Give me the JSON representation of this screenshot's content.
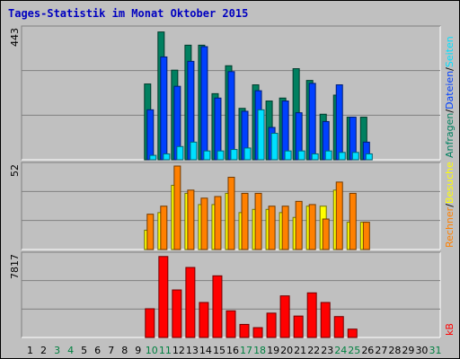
{
  "title": "Tages-Statistik im Monat Oktober 2015",
  "colors": {
    "background": "#c0c0c0",
    "title": "#0000c0",
    "anfragen": "#008060",
    "dateien": "#0040ff",
    "seiten": "#00e0ff",
    "besuche": "#ffff00",
    "rechner": "#ff8000",
    "kb": "#ff0000",
    "weekend_day": "#008040",
    "weekday": "#000000"
  },
  "chart_data": [
    {
      "type": "bar",
      "panel": "hits",
      "ymax_label": "443",
      "ylim": [
        0,
        443
      ],
      "grid": true,
      "categories": [
        "1",
        "2",
        "3",
        "4",
        "5",
        "6",
        "7",
        "8",
        "9",
        "10",
        "11",
        "12",
        "13",
        "14",
        "15",
        "16",
        "17",
        "18",
        "19",
        "20",
        "21",
        "22",
        "23",
        "24",
        "25",
        "26",
        "27",
        "28",
        "29",
        "30",
        "31"
      ],
      "right_labels": [
        "Anfragen",
        "/",
        "Dateien",
        "/",
        "Seiten"
      ],
      "series": [
        {
          "name": "Anfragen",
          "values": [
            0,
            0,
            0,
            0,
            0,
            0,
            0,
            0,
            0,
            258,
            435,
            305,
            390,
            390,
            225,
            320,
            175,
            255,
            200,
            210,
            310,
            270,
            155,
            220,
            145,
            145,
            0,
            0,
            0,
            0,
            0
          ]
        },
        {
          "name": "Dateien",
          "values": [
            0,
            0,
            0,
            0,
            0,
            0,
            0,
            0,
            0,
            170,
            350,
            250,
            335,
            385,
            210,
            300,
            165,
            235,
            110,
            200,
            160,
            260,
            130,
            255,
            145,
            60,
            0,
            0,
            0,
            0,
            0
          ]
        },
        {
          "name": "Seiten",
          "values": [
            0,
            0,
            0,
            0,
            0,
            0,
            0,
            0,
            0,
            15,
            20,
            45,
            60,
            30,
            30,
            35,
            40,
            170,
            90,
            30,
            30,
            20,
            30,
            25,
            25,
            20,
            0,
            0,
            0,
            0,
            0
          ]
        }
      ]
    },
    {
      "type": "bar",
      "panel": "visits",
      "ymax_label": "52",
      "ylim": [
        0,
        52
      ],
      "grid": true,
      "categories": [
        "1",
        "2",
        "3",
        "4",
        "5",
        "6",
        "7",
        "8",
        "9",
        "10",
        "11",
        "12",
        "13",
        "14",
        "15",
        "16",
        "17",
        "18",
        "19",
        "20",
        "21",
        "22",
        "23",
        "24",
        "25",
        "26",
        "27",
        "28",
        "29",
        "30",
        "31"
      ],
      "right_labels": [
        "Rechner",
        "/",
        "Besuche"
      ],
      "series": [
        {
          "name": "Besuche",
          "values": [
            0,
            0,
            0,
            0,
            0,
            0,
            0,
            0,
            0,
            12,
            23,
            40,
            35,
            28,
            28,
            35,
            23,
            25,
            25,
            23,
            20,
            27,
            27,
            37,
            17,
            17,
            0,
            0,
            0,
            0,
            0
          ]
        },
        {
          "name": "Rechner",
          "values": [
            0,
            0,
            0,
            0,
            0,
            0,
            0,
            0,
            0,
            22,
            27,
            52,
            37,
            32,
            33,
            45,
            35,
            35,
            27,
            27,
            30,
            28,
            19,
            42,
            35,
            17,
            0,
            0,
            0,
            0,
            0
          ]
        }
      ]
    },
    {
      "type": "bar",
      "panel": "kb",
      "ymax_label": "7817",
      "ylim": [
        0,
        7817
      ],
      "grid": true,
      "categories": [
        "1",
        "2",
        "3",
        "4",
        "5",
        "6",
        "7",
        "8",
        "9",
        "10",
        "11",
        "12",
        "13",
        "14",
        "15",
        "16",
        "17",
        "18",
        "19",
        "20",
        "21",
        "22",
        "23",
        "24",
        "25",
        "26",
        "27",
        "28",
        "29",
        "30",
        "31"
      ],
      "right_labels": [
        "kB"
      ],
      "series": [
        {
          "name": "kB",
          "values": [
            0,
            0,
            0,
            0,
            0,
            0,
            0,
            0,
            0,
            2750,
            7750,
            4550,
            6700,
            3350,
            5900,
            2550,
            1250,
            940,
            2330,
            3980,
            2050,
            4270,
            3350,
            2000,
            800,
            0,
            0,
            0,
            0,
            0,
            0
          ]
        }
      ]
    }
  ],
  "weekend_days": [
    3,
    4,
    10,
    11,
    17,
    18,
    24,
    25,
    31
  ]
}
